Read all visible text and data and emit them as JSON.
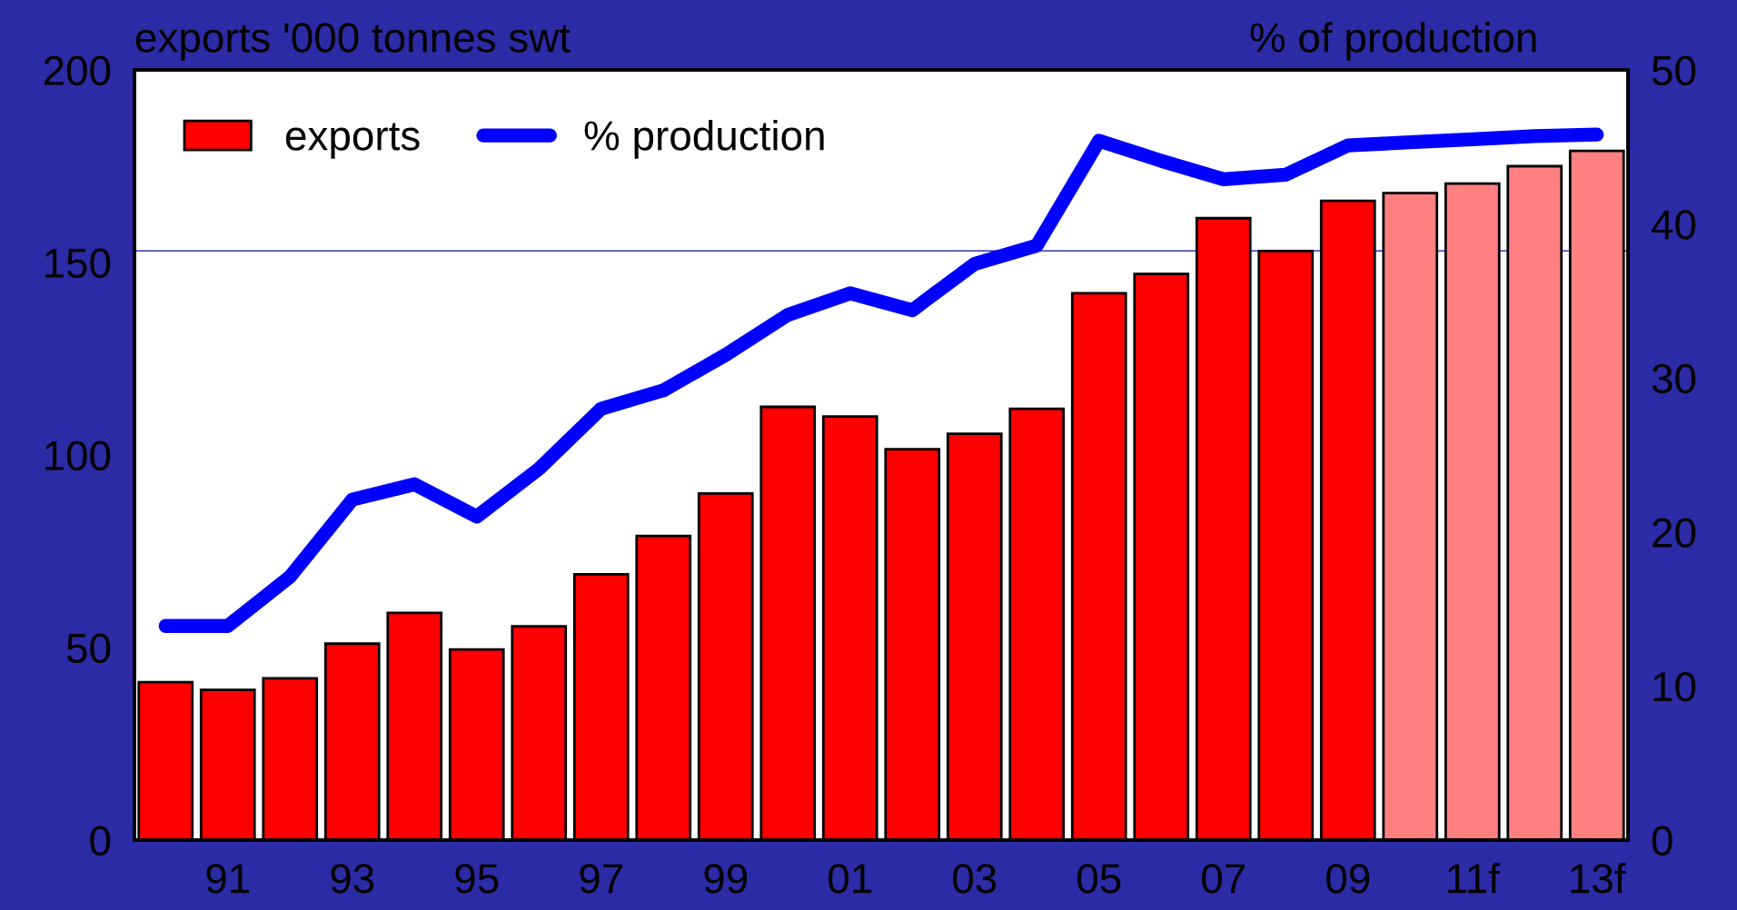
{
  "chart_data": {
    "type": "bar",
    "ylabel": "exports '000 tonnes swt",
    "y2label": "% of production",
    "categories": [
      null,
      "91",
      null,
      "93",
      null,
      "95",
      null,
      "97",
      null,
      "99",
      null,
      "01",
      null,
      "03",
      null,
      "05",
      null,
      "07",
      null,
      "09",
      null,
      "11f",
      null,
      "13f"
    ],
    "series": [
      {
        "name": "exports",
        "color": "#ff0000",
        "colors": [
          "#ff0000",
          "#ff0000",
          "#ff0000",
          "#ff0000",
          "#ff0000",
          "#ff0000",
          "#ff0000",
          "#ff0000",
          "#ff0000",
          "#ff0000",
          "#ff0000",
          "#ff0000",
          "#ff0000",
          "#ff0000",
          "#ff0000",
          "#ff0000",
          "#ff0000",
          "#ff0000",
          "#ff0000",
          "#ff0000",
          "#ff8080",
          "#ff8080",
          "#ff8080",
          "#ff8080"
        ],
        "values": [
          41,
          39,
          42,
          51,
          59,
          49.5,
          55.5,
          69,
          79,
          90,
          112.5,
          110,
          101.5,
          105.5,
          112,
          142,
          147,
          161.5,
          153,
          166,
          168,
          170.5,
          175,
          179
        ]
      },
      {
        "name": "% production",
        "type": "line",
        "axis": "y2",
        "color": "#0000ff",
        "values": [
          13.9,
          13.9,
          17.1,
          22.1,
          23.1,
          21.0,
          24.1,
          28.0,
          29.2,
          31.5,
          34.1,
          35.5,
          34.4,
          37.4,
          38.6,
          45.4,
          44.1,
          42.9,
          43.2,
          45.1,
          45.3,
          45.5,
          45.7,
          45.8
        ]
      }
    ],
    "ylim": [
      0,
      200
    ],
    "yticks": [
      0,
      50,
      100,
      150,
      200
    ],
    "y2lim": [
      0,
      50
    ],
    "y2ticks": [
      0,
      10,
      20,
      30,
      40,
      50
    ],
    "ref_lines": [
      {
        "axis": "y",
        "value": 153,
        "color": "#3333bb"
      }
    ],
    "legend": "top left",
    "grid": false
  }
}
